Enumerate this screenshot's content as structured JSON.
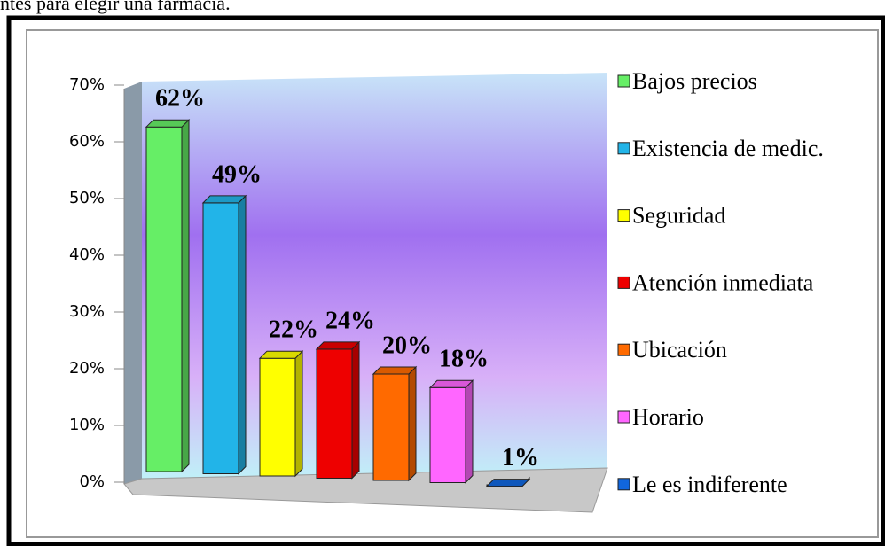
{
  "caption": "ntes para elegir una farmacia.",
  "chart_data": {
    "type": "bar",
    "categories": [
      "Bajos precios",
      "Existencia de medic.",
      "Seguridad",
      "Atención inmediata",
      "Ubicación",
      "Horario",
      "Le es indiferente"
    ],
    "values": [
      62,
      49,
      22,
      24,
      20,
      18,
      1
    ],
    "value_labels": [
      "62%",
      "49%",
      "22%",
      "24%",
      "20%",
      "18%",
      "1%"
    ],
    "colors": [
      "#66ee66",
      "#22b4e8",
      "#ffff00",
      "#ee0000",
      "#ff6a00",
      "#ff66ff",
      "#1166dd"
    ],
    "ylim": [
      0,
      70
    ],
    "yticks": [
      {
        "value": 0,
        "label": "0%"
      },
      {
        "value": 10,
        "label": "10%"
      },
      {
        "value": 20,
        "label": "20%"
      },
      {
        "value": 30,
        "label": "30%"
      },
      {
        "value": 40,
        "label": "40%"
      },
      {
        "value": 50,
        "label": "50%"
      },
      {
        "value": 60,
        "label": "60%"
      },
      {
        "value": 70,
        "label": "70%"
      }
    ],
    "legend": "right"
  }
}
